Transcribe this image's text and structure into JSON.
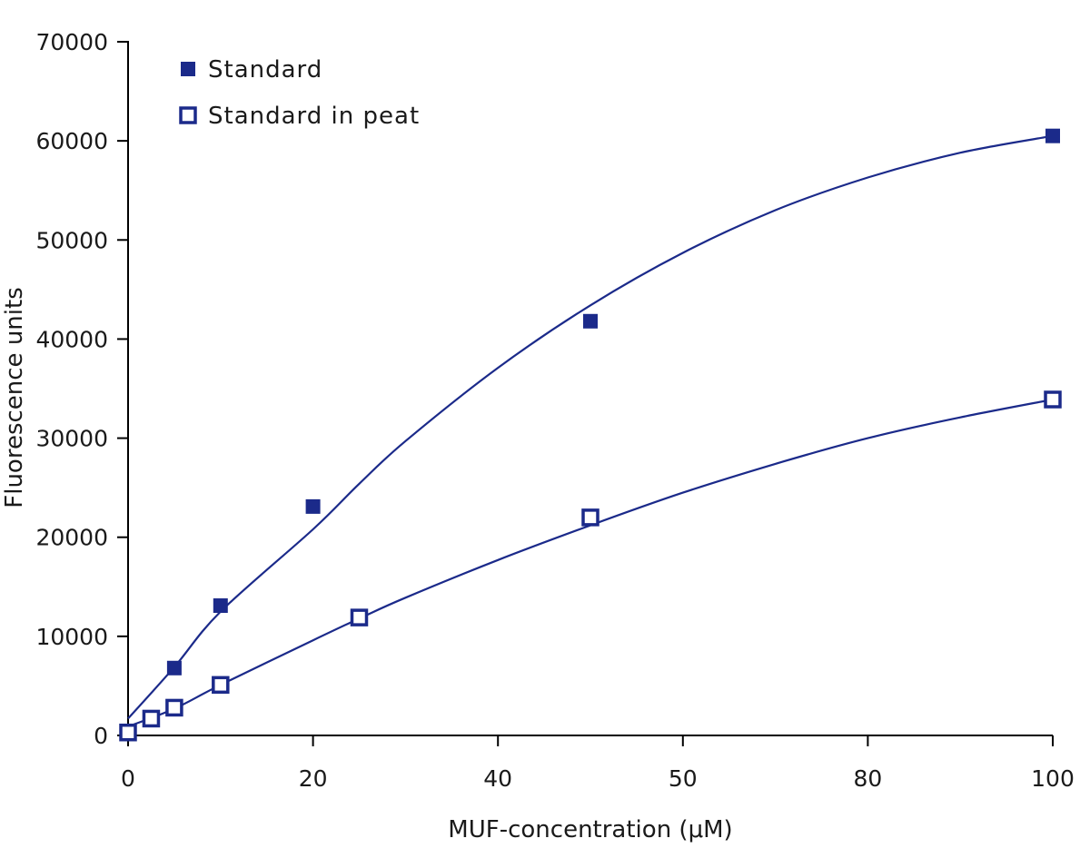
{
  "chart_data": {
    "type": "scatter",
    "xlabel": "MUF-concentration (μM)",
    "ylabel": "Fluorescence units",
    "x_tick_labels": [
      "0",
      "20",
      "40",
      "50",
      "80",
      "100"
    ],
    "y_tick_labels": [
      "0",
      "10000",
      "20000",
      "30000",
      "40000",
      "50000",
      "60000",
      "70000"
    ],
    "xlim": [
      0,
      100
    ],
    "ylim": [
      0,
      70000
    ],
    "grid": false,
    "legend_position": "top-left",
    "colors": {
      "series": "#1b2a8a",
      "axis": "#000000"
    },
    "series": [
      {
        "name": "Standard",
        "marker": "filled-square",
        "x": [
          0,
          5,
          10,
          20,
          50,
          100
        ],
        "y": [
          300,
          6800,
          13100,
          23100,
          41800,
          60500
        ],
        "fit_curve": [
          [
            0,
            1700
          ],
          [
            5,
            6900
          ],
          [
            10,
            12500
          ],
          [
            20,
            20800
          ],
          [
            25,
            25400
          ],
          [
            30,
            29700
          ],
          [
            40,
            37100
          ],
          [
            50,
            43400
          ],
          [
            60,
            48700
          ],
          [
            70,
            53000
          ],
          [
            80,
            56300
          ],
          [
            90,
            58800
          ],
          [
            100,
            60500
          ]
        ]
      },
      {
        "name": "Standard in peat",
        "marker": "open-square",
        "x": [
          0,
          2.5,
          5,
          10,
          25,
          50,
          100
        ],
        "y": [
          300,
          1700,
          2800,
          5100,
          11900,
          22000,
          33900
        ],
        "fit_curve": [
          [
            0,
            900
          ],
          [
            5,
            2700
          ],
          [
            10,
            5100
          ],
          [
            20,
            9600
          ],
          [
            25,
            11800
          ],
          [
            30,
            13900
          ],
          [
            40,
            17700
          ],
          [
            50,
            21200
          ],
          [
            60,
            24500
          ],
          [
            70,
            27400
          ],
          [
            80,
            30000
          ],
          [
            90,
            32100
          ],
          [
            100,
            33900
          ]
        ]
      }
    ]
  }
}
